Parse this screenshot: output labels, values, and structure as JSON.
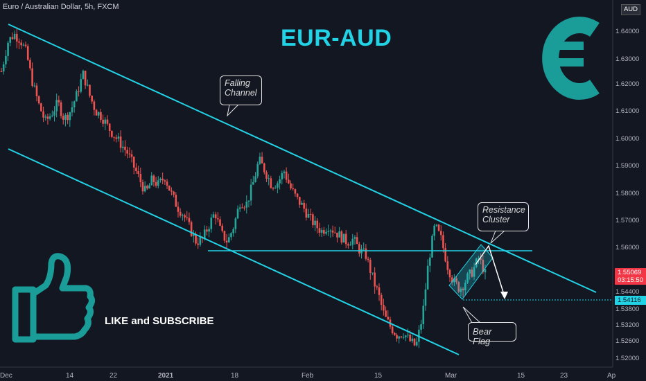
{
  "header": {
    "symbol_title": "Euro / Australian Dollar, 5h, FXCM",
    "currency": "AUD"
  },
  "overlay": {
    "headline": "EUR-AUD",
    "cta": "LIKE and SUBSCRIBE",
    "callout_falling": [
      "Falling",
      "Channel"
    ],
    "callout_resistance": [
      "Resistance",
      "Cluster"
    ],
    "callout_bear": "Bear Flag",
    "euro_icon": "euro-sign",
    "like_icon": "thumbs-up"
  },
  "price_tags": {
    "last_price": "1.55069",
    "countdown": "03:15:50",
    "target": "1.54116"
  },
  "colors": {
    "background": "#131722",
    "accent": "#22d3e6",
    "teal_icon": "#1a9c99",
    "bull": "#26a69a",
    "bear": "#ef5350",
    "last_price_tag": "#f23645"
  },
  "chart_data": {
    "type": "candlestick",
    "title": "Euro / Australian Dollar, 5h, FXCM",
    "y_axis": {
      "ticks": [
        "1.64000",
        "1.63000",
        "1.62000",
        "1.61000",
        "1.60000",
        "1.59000",
        "1.58000",
        "1.57000",
        "1.56000",
        "1.55000",
        "1.54400",
        "1.53800",
        "1.53200",
        "1.52600",
        "1.52000"
      ]
    },
    "x_axis": {
      "ticks": [
        "Dec",
        "14",
        "22",
        "2021",
        "18",
        "Feb",
        "15",
        "Mar",
        "15",
        "23",
        "Ap"
      ]
    },
    "price_path": [
      1.625,
      1.636,
      1.639,
      1.637,
      1.632,
      1.62,
      1.612,
      1.606,
      1.609,
      1.613,
      1.607,
      1.61,
      1.616,
      1.624,
      1.616,
      1.61,
      1.608,
      1.604,
      1.601,
      1.598,
      1.595,
      1.59,
      1.585,
      1.58,
      1.585,
      1.583,
      1.586,
      1.58,
      1.575,
      1.572,
      1.567,
      1.562,
      1.563,
      1.568,
      1.573,
      1.565,
      1.562,
      1.568,
      1.577,
      1.576,
      1.583,
      1.592,
      1.588,
      1.583,
      1.584,
      1.588,
      1.582,
      1.578,
      1.575,
      1.571,
      1.568,
      1.566,
      1.568,
      1.566,
      1.564,
      1.562,
      1.563,
      1.559,
      1.557,
      1.549,
      1.543,
      1.535,
      1.531,
      1.528,
      1.529,
      1.526,
      1.524,
      1.535,
      1.555,
      1.568,
      1.563,
      1.553,
      1.547,
      1.545,
      1.548,
      1.551,
      1.556,
      1.55
    ],
    "annotations": {
      "falling_channel_upper": [
        [
          0.0,
          1.643
        ],
        [
          1.0,
          1.545
        ]
      ],
      "falling_channel_lower": [
        [
          0.0,
          1.597
        ],
        [
          1.0,
          1.522
        ]
      ],
      "horizontal_resistance": 1.5592,
      "target_level": 1.54116,
      "last_price": 1.55069
    }
  }
}
